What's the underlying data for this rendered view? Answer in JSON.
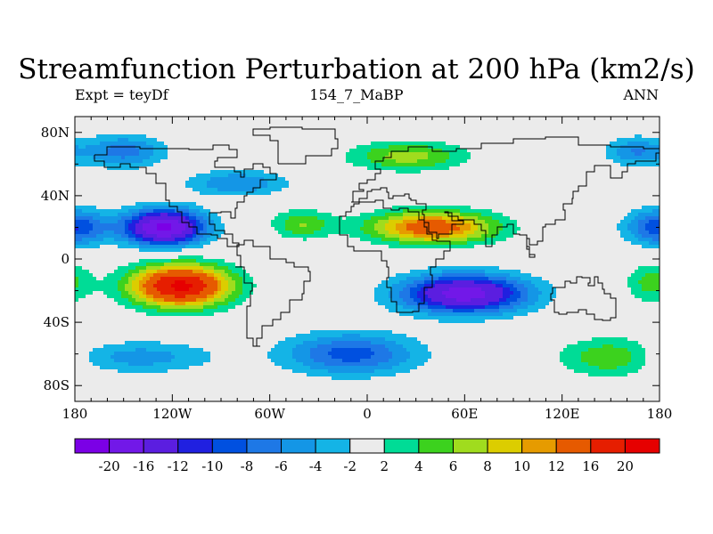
{
  "title": "Streamfunction Perturbation at 200 hPa (km2/s)",
  "subtitle_left": "Expt = teyDf",
  "subtitle_center": "154_7_MaBP",
  "subtitle_right": "ANN",
  "chart_data": {
    "type": "heatmap",
    "title": "Streamfunction Perturbation at 200 hPa (km2/s)",
    "projection": "cylindrical-equidistant",
    "xlim": [
      -180,
      180
    ],
    "ylim": [
      -90,
      90
    ],
    "x_ticks": [
      {
        "value": -180,
        "label": "180"
      },
      {
        "value": -120,
        "label": "120W"
      },
      {
        "value": -60,
        "label": "60W"
      },
      {
        "value": 0,
        "label": "0"
      },
      {
        "value": 60,
        "label": "60E"
      },
      {
        "value": 120,
        "label": "120E"
      },
      {
        "value": 180,
        "label": "180"
      }
    ],
    "y_ticks": [
      {
        "value": 80,
        "label": "80N"
      },
      {
        "value": 40,
        "label": "40N"
      },
      {
        "value": 0,
        "label": "0"
      },
      {
        "value": -40,
        "label": "40S"
      },
      {
        "value": -80,
        "label": "80S"
      }
    ],
    "contour_levels": [
      -20,
      -16,
      -12,
      -10,
      -8,
      -6,
      -4,
      -2,
      2,
      4,
      6,
      8,
      10,
      12,
      16,
      20
    ],
    "colors": [
      "#7b00e6",
      "#7218e8",
      "#5b1ee0",
      "#2020e0",
      "#0050e0",
      "#1e78e6",
      "#1496e6",
      "#14b4e6",
      "#ebebeb",
      "#00dc96",
      "#3cd21e",
      "#a0dc1e",
      "#dccd00",
      "#e69b00",
      "#e65a00",
      "#e61e00",
      "#e60000"
    ],
    "features": [
      {
        "lon": -125,
        "lat": 20,
        "amplitude": -21,
        "lon_radius": 24,
        "lat_radius": 11
      },
      {
        "lon": -115,
        "lat": -17,
        "amplitude": 21,
        "lon_radius": 30,
        "lat_radius": 13
      },
      {
        "lon": 40,
        "lat": 20,
        "amplitude": 14.5,
        "lon_radius": 38,
        "lat_radius": 10
      },
      {
        "lon": 60,
        "lat": -22,
        "amplitude": -18,
        "lon_radius": 38,
        "lat_radius": 12
      },
      {
        "lon": 25,
        "lat": 65,
        "amplitude": 7,
        "lon_radius": 35,
        "lat_radius": 9
      },
      {
        "lon": -80,
        "lat": 48,
        "amplitude": -6,
        "lon_radius": 30,
        "lat_radius": 8
      },
      {
        "lon": -150,
        "lat": 68,
        "amplitude": -7,
        "lon_radius": 25,
        "lat_radius": 10
      },
      {
        "lon": 180,
        "lat": 20,
        "amplitude": -10,
        "lon_radius": 20,
        "lat_radius": 11
      },
      {
        "lon": 165,
        "lat": 68,
        "amplitude": -6,
        "lon_radius": 18,
        "lat_radius": 9
      },
      {
        "lon": -140,
        "lat": -62,
        "amplitude": -5,
        "lon_radius": 45,
        "lat_radius": 10
      },
      {
        "lon": -10,
        "lat": -60,
        "amplitude": -9,
        "lon_radius": 40,
        "lat_radius": 13
      },
      {
        "lon": 150,
        "lat": -62,
        "amplitude": 6,
        "lon_radius": 30,
        "lat_radius": 12
      },
      {
        "lon": 175,
        "lat": -15,
        "amplitude": 5,
        "lon_radius": 15,
        "lat_radius": 12
      },
      {
        "lon": -40,
        "lat": 22,
        "amplitude": 6,
        "lon_radius": 18,
        "lat_radius": 9
      }
    ],
    "legend": {
      "placement": "bottom",
      "type": "colorbar"
    }
  }
}
